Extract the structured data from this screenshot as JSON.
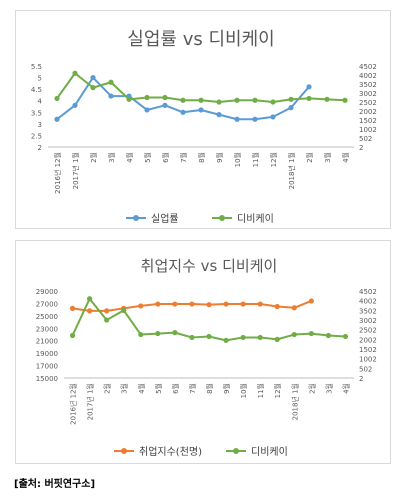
{
  "source": "[출처: 버핏연구소]",
  "chart_data": [
    {
      "type": "line",
      "title": "실업률 vs 디비케이",
      "categories": [
        "2016년 12월",
        "2017년 1월",
        "2월",
        "3월",
        "4월",
        "5월",
        "6월",
        "7월",
        "8월",
        "9월",
        "10월",
        "11월",
        "12월",
        "2018년 1월",
        "2월",
        "3월",
        "4월"
      ],
      "series": [
        {
          "name": "실업률",
          "axis": "left",
          "color": "#5b9bd5",
          "values": [
            3.2,
            3.8,
            5.0,
            4.2,
            4.2,
            3.6,
            3.8,
            3.5,
            3.6,
            3.4,
            3.2,
            3.2,
            3.3,
            3.7,
            4.6,
            null,
            null
          ]
        },
        {
          "name": "디비케이",
          "axis": "right",
          "color": "#70ad47",
          "values": [
            2700,
            4100,
            3300,
            3600,
            2650,
            2750,
            2750,
            2600,
            2600,
            2500,
            2600,
            2600,
            2500,
            2650,
            2700,
            2650,
            2600
          ]
        }
      ],
      "left_axis": {
        "ticks": [
          "5.5",
          "5",
          "4.5",
          "4",
          "3.5",
          "3",
          "2.5",
          "2"
        ],
        "min": 2,
        "max": 5.5
      },
      "right_axis": {
        "ticks": [
          "4502",
          "4002",
          "3502",
          "3002",
          "2502",
          "2002",
          "1502",
          "1002",
          "502",
          "2"
        ],
        "min": 2,
        "max": 4502
      },
      "legend_position": "bottom"
    },
    {
      "type": "line",
      "title": "취업지수 vs 디비케이",
      "categories": [
        "2016년 12월",
        "2017년 1월",
        "2월",
        "3월",
        "4월",
        "5월",
        "6월",
        "7월",
        "8월",
        "9월",
        "10월",
        "11월",
        "12월",
        "2018년 1월",
        "2월",
        "3월",
        "4월"
      ],
      "series": [
        {
          "name": "취업지수(천명)",
          "axis": "left",
          "color": "#ed7d31",
          "values": [
            26200,
            25800,
            25800,
            26200,
            26600,
            26900,
            26900,
            26900,
            26800,
            26900,
            26900,
            26900,
            26500,
            26300,
            27400,
            null,
            null
          ]
        },
        {
          "name": "디비케이",
          "axis": "right",
          "color": "#70ad47",
          "values": [
            2200,
            4100,
            3000,
            3500,
            2250,
            2300,
            2350,
            2100,
            2150,
            1950,
            2100,
            2100,
            2000,
            2250,
            2300,
            2200,
            2150
          ]
        }
      ],
      "left_axis": {
        "ticks": [
          "29000",
          "27000",
          "25000",
          "23000",
          "21000",
          "19000",
          "17000",
          "15000"
        ],
        "min": 15000,
        "max": 29000
      },
      "right_axis": {
        "ticks": [
          "4502",
          "4002",
          "3502",
          "3002",
          "2502",
          "2002",
          "1502",
          "1002",
          "502",
          "2"
        ],
        "min": 2,
        "max": 4502
      },
      "legend_position": "bottom"
    }
  ]
}
